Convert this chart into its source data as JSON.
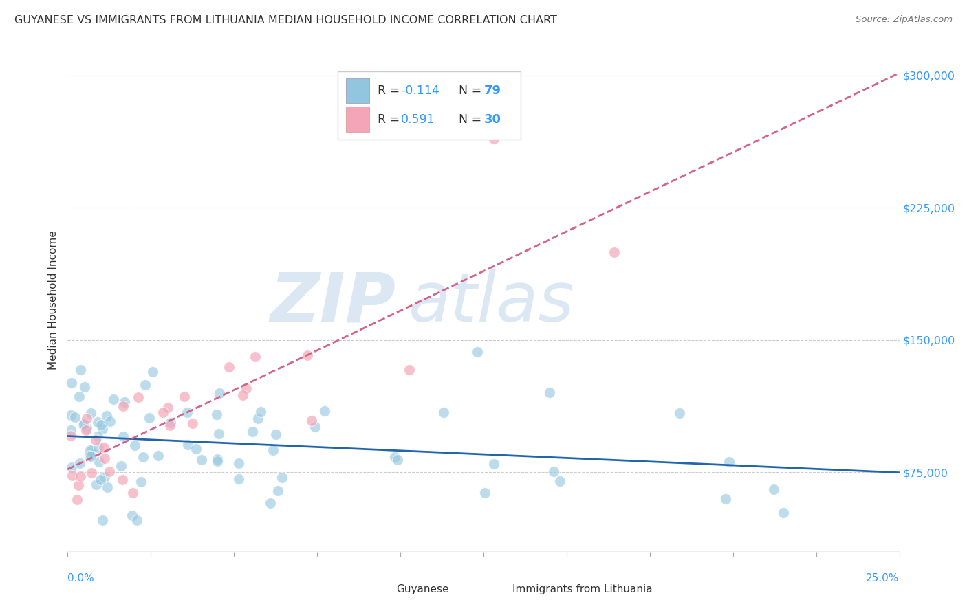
{
  "title": "GUYANESE VS IMMIGRANTS FROM LITHUANIA MEDIAN HOUSEHOLD INCOME CORRELATION CHART",
  "source": "Source: ZipAtlas.com",
  "ylabel": "Median Household Income",
  "xlim": [
    0.0,
    0.25
  ],
  "ylim": [
    30000,
    315000
  ],
  "yticks": [
    75000,
    150000,
    225000,
    300000
  ],
  "ytick_labels": [
    "$75,000",
    "$150,000",
    "$225,000",
    "$300,000"
  ],
  "watermark_zip": "ZIP",
  "watermark_atlas": "atlas",
  "legend_r1_label": "R = ",
  "legend_r1_val": "-0.114",
  "legend_n1_label": "N = ",
  "legend_n1_val": "79",
  "legend_r2_label": "R =  ",
  "legend_r2_val": "0.591",
  "legend_n2_label": "N = ",
  "legend_n2_val": "30",
  "color_blue": "#92c5de",
  "color_pink": "#f4a6b8",
  "color_line_blue": "#2166ac",
  "color_line_pink": "#d6618a",
  "color_title": "#333333",
  "color_source": "#777777",
  "color_ytick": "#3399ff",
  "color_xtick": "#3399ff",
  "color_text_dark": "#333333",
  "background": "#ffffff",
  "grid_color": "#cccccc"
}
